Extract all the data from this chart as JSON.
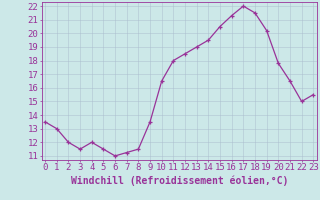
{
  "x": [
    0,
    1,
    2,
    3,
    4,
    5,
    6,
    7,
    8,
    9,
    10,
    11,
    12,
    13,
    14,
    15,
    16,
    17,
    18,
    19,
    20,
    21,
    22,
    23
  ],
  "y": [
    13.5,
    13.0,
    12.0,
    11.5,
    12.0,
    11.5,
    11.0,
    11.25,
    11.5,
    13.5,
    16.5,
    18.0,
    18.5,
    19.0,
    19.5,
    20.5,
    21.3,
    22.0,
    21.5,
    20.2,
    17.8,
    16.5,
    15.0,
    15.5
  ],
  "line_color": "#993399",
  "marker": "+",
  "bg_color": "#cce8e8",
  "grid_color": "#aabbcc",
  "xlabel": "Windchill (Refroidissement éolien,°C)",
  "xlabel_color": "#993399",
  "tick_color": "#993399",
  "axis_color": "#993399",
  "ylim_min": 11,
  "ylim_max": 22,
  "xlim_min": 0,
  "xlim_max": 23,
  "yticks": [
    11,
    12,
    13,
    14,
    15,
    16,
    17,
    18,
    19,
    20,
    21,
    22
  ],
  "xticks": [
    0,
    1,
    2,
    3,
    4,
    5,
    6,
    7,
    8,
    9,
    10,
    11,
    12,
    13,
    14,
    15,
    16,
    17,
    18,
    19,
    20,
    21,
    22,
    23
  ],
  "tick_fontsize": 6.5,
  "xlabel_fontsize": 7.0,
  "linewidth": 0.9,
  "markersize": 3.5
}
